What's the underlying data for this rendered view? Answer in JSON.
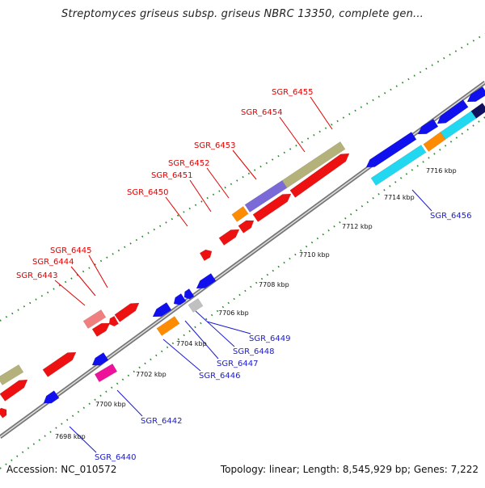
{
  "header": {
    "title": "Streptomyces griseus subsp. griseus NBRC 13350, complete gen..."
  },
  "footer": {
    "accession": "Accession: NC_010572",
    "summary": "Topology: linear; Length: 8,545,929 bp; Genes: 7,222"
  },
  "colors": {
    "forward_label": "#e00000",
    "reverse_label": "#1a1ad0",
    "backbone": "#8c8c8c",
    "tick": "#2a8a2a"
  },
  "scale_ticks": [
    {
      "label": "7698 kbp"
    },
    {
      "label": "7700 kbp"
    },
    {
      "label": "7702 kbp"
    },
    {
      "label": "7704 kbp"
    },
    {
      "label": "7706 kbp"
    },
    {
      "label": "7708 kbp"
    },
    {
      "label": "7710 kbp"
    },
    {
      "label": "7712 kbp"
    },
    {
      "label": "7714 kbp"
    },
    {
      "label": "7716 kbp"
    }
  ],
  "forward_gene_labels": [
    {
      "name": "SGR_6443"
    },
    {
      "name": "SGR_6444"
    },
    {
      "name": "SGR_6445"
    },
    {
      "name": "SGR_6450"
    },
    {
      "name": "SGR_6451"
    },
    {
      "name": "SGR_6452"
    },
    {
      "name": "SGR_6453"
    },
    {
      "name": "SGR_6454"
    },
    {
      "name": "SGR_6455"
    }
  ],
  "reverse_gene_labels": [
    {
      "name": "SGR_6440"
    },
    {
      "name": "SGR_6442"
    },
    {
      "name": "SGR_6446"
    },
    {
      "name": "SGR_6447"
    },
    {
      "name": "SGR_6448"
    },
    {
      "name": "SGR_6449"
    },
    {
      "name": "SGR_6456"
    }
  ]
}
